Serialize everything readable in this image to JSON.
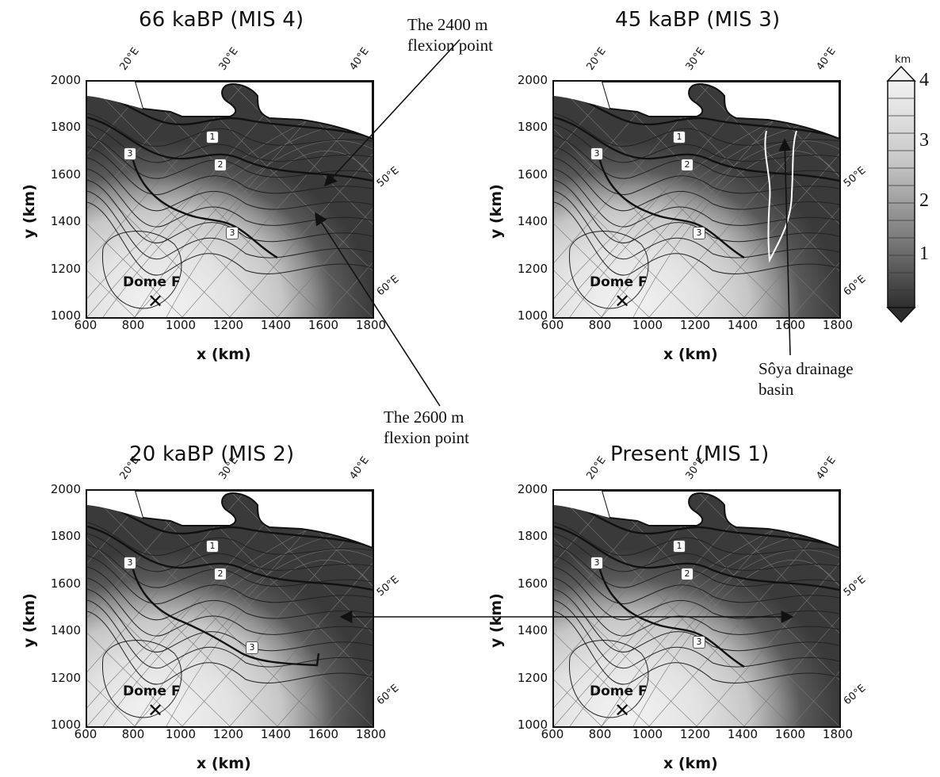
{
  "panels": [
    {
      "title": "66 kaBP (MIS 4)"
    },
    {
      "title": "45 kaBP (MIS 3)"
    },
    {
      "title": "20 kaBP (MIS 2)"
    },
    {
      "title": "Present (MIS 1)"
    }
  ],
  "axes": {
    "xlabel": "x (km)",
    "ylabel": "y (km)",
    "xticks": [
      "600",
      "800",
      "1000",
      "1200",
      "1400",
      "1600",
      "1800"
    ],
    "yticks": [
      "2000",
      "1800",
      "1600",
      "1400",
      "1200",
      "1000"
    ],
    "top_lon": [
      "20°E",
      "30°E",
      "40°E"
    ],
    "right_lon": [
      "50°E",
      "60°E"
    ]
  },
  "contour_labels": [
    "1",
    "2",
    "3"
  ],
  "site": "Dome F",
  "colorbar": {
    "unit": "km",
    "ticks": [
      "4",
      "3",
      "2",
      "1"
    ]
  },
  "annotations": {
    "a2400_l1": "The 2400 m",
    "a2400_l2": "flexion point",
    "a2600_l1": "The 2600 m",
    "a2600_l2": "flexion point",
    "soya_l1": "Sôya drainage",
    "soya_l2": "basin"
  }
}
